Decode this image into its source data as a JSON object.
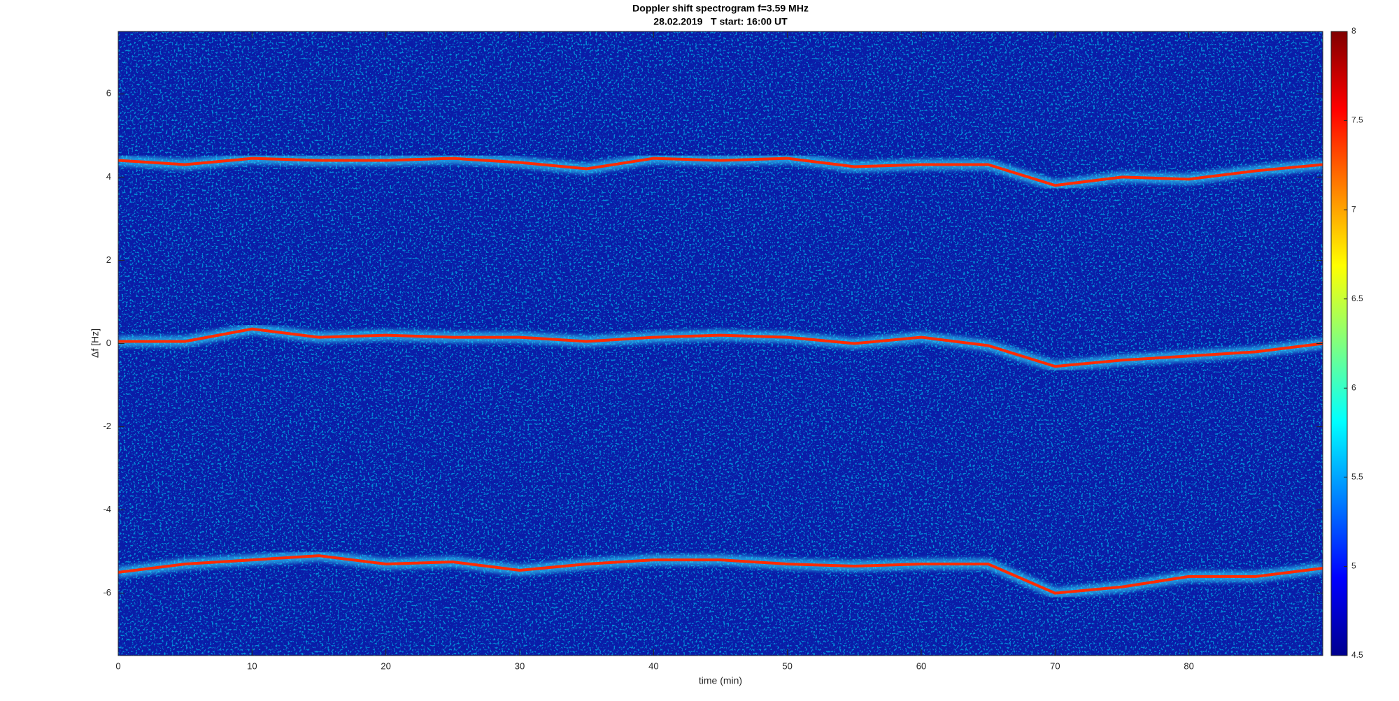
{
  "chart_data": {
    "type": "spectrogram",
    "title": "Doppler shift spectrogram f=3.59 MHz",
    "subtitle": "28.02.2019   T start: 16:00 UT",
    "xlabel": "time (min)",
    "ylabel": "Δf [Hz]",
    "xlim": [
      0,
      90
    ],
    "xticks": [
      0,
      10,
      20,
      30,
      40,
      50,
      60,
      70,
      80
    ],
    "ylim": [
      -7.5,
      7.5
    ],
    "yticks": [
      -6,
      -4,
      -2,
      0,
      2,
      4,
      6
    ],
    "background_color": "#0a1ca8",
    "x": [
      0,
      5,
      10,
      15,
      20,
      25,
      30,
      35,
      40,
      45,
      50,
      55,
      60,
      65,
      70,
      75,
      80,
      85,
      90
    ],
    "series": [
      {
        "color": "#ff2a00",
        "values": [
          4.4,
          4.3,
          4.45,
          4.4,
          4.4,
          4.45,
          4.35,
          4.2,
          4.45,
          4.4,
          4.45,
          4.25,
          4.3,
          4.3,
          3.8,
          4.0,
          3.95,
          4.15,
          4.3
        ]
      },
      {
        "color": "#ff2a00",
        "values": [
          0.05,
          0.05,
          0.35,
          0.15,
          0.2,
          0.15,
          0.15,
          0.05,
          0.15,
          0.2,
          0.15,
          0.0,
          0.15,
          -0.05,
          -0.55,
          -0.4,
          -0.3,
          -0.2,
          0.0
        ]
      },
      {
        "color": "#ff2a00",
        "values": [
          -5.5,
          -5.3,
          -5.2,
          -5.1,
          -5.3,
          -5.25,
          -5.45,
          -5.3,
          -5.2,
          -5.2,
          -5.3,
          -5.35,
          -5.3,
          -5.3,
          -6.0,
          -5.85,
          -5.6,
          -5.6,
          -5.4
        ]
      }
    ],
    "colorbar": {
      "colormap": "jet",
      "clim": [
        4.5,
        8
      ],
      "ticks": [
        4.5,
        5,
        5.5,
        6,
        6.5,
        7,
        7.5,
        8
      ]
    }
  }
}
